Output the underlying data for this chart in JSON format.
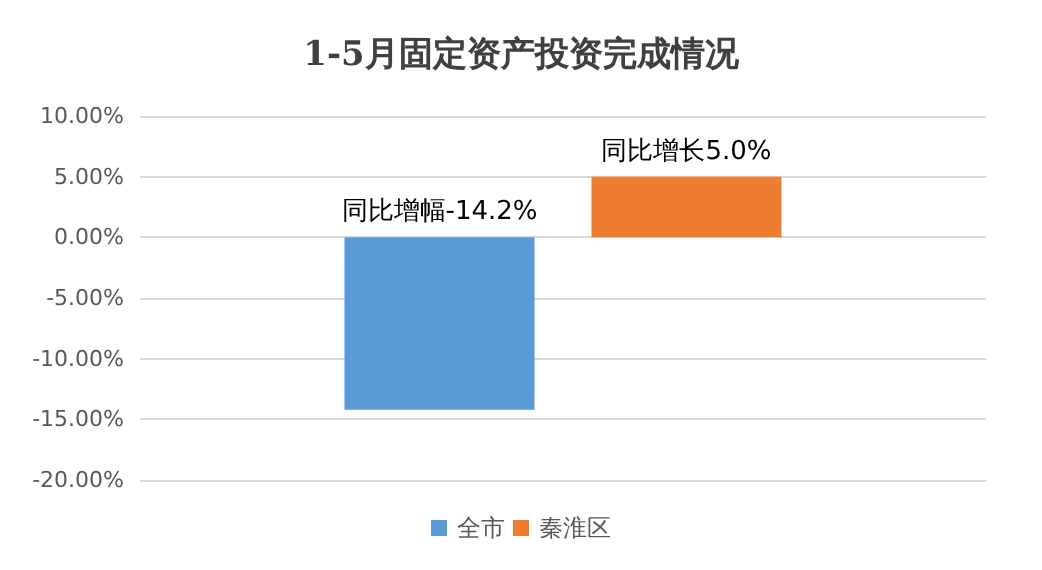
{
  "chart_data": {
    "type": "bar",
    "title": "1-5月固定资产投资完成情况",
    "categories": [
      null
    ],
    "series": [
      {
        "name": "全市",
        "color": "#5b9bd5",
        "values": [
          -14.2
        ],
        "value_labels": [
          "同比增幅-14.2%"
        ]
      },
      {
        "name": "秦淮区",
        "color": "#ed7d31",
        "values": [
          5.0
        ],
        "value_labels": [
          "同比增长5.0%"
        ]
      }
    ],
    "ylim": [
      -20,
      10
    ],
    "yticks": [
      {
        "value": 10,
        "label": "10.00%"
      },
      {
        "value": 5,
        "label": "5.00%"
      },
      {
        "value": 0,
        "label": "0.00%"
      },
      {
        "value": -5,
        "label": "-5.00%"
      },
      {
        "value": -10,
        "label": "-10.00%"
      },
      {
        "value": -15,
        "label": "-15.00%"
      },
      {
        "value": -20,
        "label": "-20.00%"
      }
    ],
    "grid": "y",
    "legend": "bottom"
  }
}
